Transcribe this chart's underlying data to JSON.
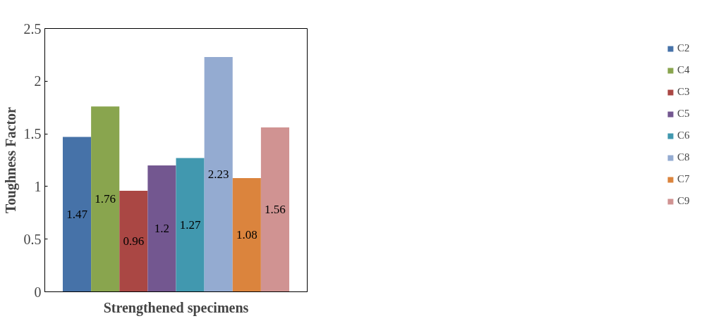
{
  "chart_data": {
    "type": "bar",
    "xlabel": "Strengthened specimens",
    "ylabel": "Toughness Factor",
    "categories": [
      null
    ],
    "series": [
      {
        "name": "C2",
        "color": "#4672a8",
        "values": [
          1.47
        ]
      },
      {
        "name": "C4",
        "color": "#89a54e",
        "values": [
          1.76
        ]
      },
      {
        "name": "C3",
        "color": "#aa4744",
        "values": [
          0.96
        ]
      },
      {
        "name": "C5",
        "color": "#735790",
        "values": [
          1.2
        ]
      },
      {
        "name": "C6",
        "color": "#4198af",
        "values": [
          1.27
        ]
      },
      {
        "name": "C8",
        "color": "#94abd1",
        "values": [
          2.23
        ]
      },
      {
        "name": "C7",
        "color": "#db843d",
        "values": [
          1.08
        ]
      },
      {
        "name": "C9",
        "color": "#d09392",
        "values": [
          1.56
        ]
      }
    ],
    "ylim": [
      0,
      2.5
    ],
    "yticks": [
      0,
      0.5,
      1,
      1.5,
      2,
      2.5
    ],
    "data_labels": true,
    "legend": "right",
    "grid": false
  }
}
